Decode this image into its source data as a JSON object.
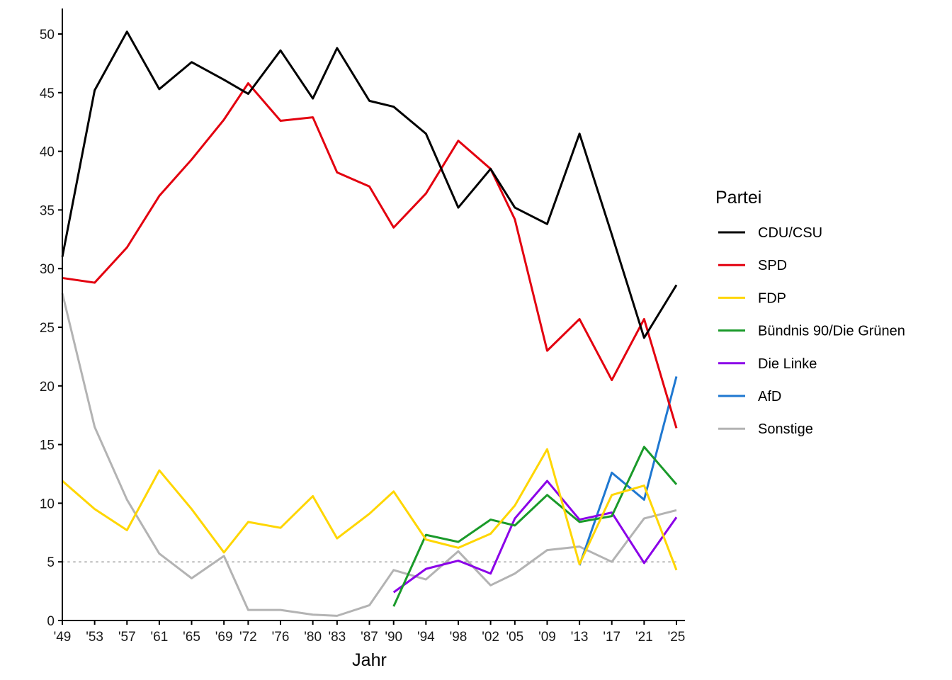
{
  "chart_data": {
    "type": "line",
    "xlabel": "Jahr",
    "ylabel": "",
    "ylim": [
      0,
      52
    ],
    "y_ticks": [
      0,
      5,
      10,
      15,
      20,
      25,
      30,
      35,
      40,
      45,
      50
    ],
    "x_years": [
      1949,
      1953,
      1957,
      1961,
      1965,
      1969,
      1972,
      1976,
      1980,
      1983,
      1987,
      1990,
      1994,
      1998,
      2002,
      2005,
      2009,
      2013,
      2017,
      2021,
      2025
    ],
    "x_tick_labels": [
      "'49",
      "'53",
      "'57",
      "'61",
      "'65",
      "'69",
      "'72",
      "'76",
      "'80",
      "'83",
      "'87",
      "'90",
      "'94",
      "'98",
      "'02",
      "'05",
      "'09",
      "'13",
      "'17",
      "'21",
      "'25"
    ],
    "reference_line": {
      "y": 5,
      "style": "dotted",
      "color": "#bbbbbb"
    },
    "grid": false,
    "legend": {
      "title": "Partei",
      "placement": "right"
    },
    "series": [
      {
        "name": "CDU/CSU",
        "color": "#000000",
        "values": [
          31.0,
          45.2,
          50.2,
          45.3,
          47.6,
          46.1,
          44.9,
          48.6,
          44.5,
          48.8,
          44.3,
          43.8,
          41.5,
          35.2,
          38.5,
          35.2,
          33.8,
          41.5,
          32.9,
          24.1,
          28.6
        ]
      },
      {
        "name": "SPD",
        "color": "#e3000f",
        "values": [
          29.2,
          28.8,
          31.8,
          36.2,
          39.3,
          42.7,
          45.8,
          42.6,
          42.9,
          38.2,
          37.0,
          33.5,
          36.4,
          40.9,
          38.5,
          34.2,
          23.0,
          25.7,
          20.5,
          25.7,
          16.4
        ]
      },
      {
        "name": "FDP",
        "color": "#ffd600",
        "values": [
          11.9,
          9.5,
          7.7,
          12.8,
          9.5,
          5.8,
          8.4,
          7.9,
          10.6,
          7.0,
          9.1,
          11.0,
          6.9,
          6.2,
          7.4,
          9.8,
          14.6,
          4.8,
          10.7,
          11.5,
          4.3
        ]
      },
      {
        "name": "Bündnis 90/Die Grünen",
        "color": "#1a9a2a",
        "values": [
          null,
          null,
          null,
          null,
          null,
          null,
          null,
          null,
          null,
          null,
          null,
          1.2,
          7.3,
          6.7,
          8.6,
          8.1,
          10.7,
          8.4,
          8.9,
          14.8,
          11.6
        ]
      },
      {
        "name": "Die Linke",
        "color": "#8b00e8",
        "values": [
          null,
          null,
          null,
          null,
          null,
          null,
          null,
          null,
          null,
          null,
          null,
          2.4,
          4.4,
          5.1,
          4.0,
          8.7,
          11.9,
          8.6,
          9.2,
          4.9,
          8.8
        ]
      },
      {
        "name": "AfD",
        "color": "#1f78d1",
        "values": [
          null,
          null,
          null,
          null,
          null,
          null,
          null,
          null,
          null,
          null,
          null,
          null,
          null,
          null,
          null,
          null,
          null,
          4.7,
          12.6,
          10.3,
          20.8
        ]
      },
      {
        "name": "Sonstige",
        "color": "#b3b3b3",
        "values": [
          27.9,
          16.5,
          10.3,
          5.7,
          3.6,
          5.5,
          0.9,
          0.9,
          0.5,
          0.4,
          1.3,
          4.3,
          3.5,
          5.9,
          3.0,
          4.0,
          6.0,
          6.3,
          5.0,
          8.7,
          9.4
        ]
      }
    ]
  }
}
